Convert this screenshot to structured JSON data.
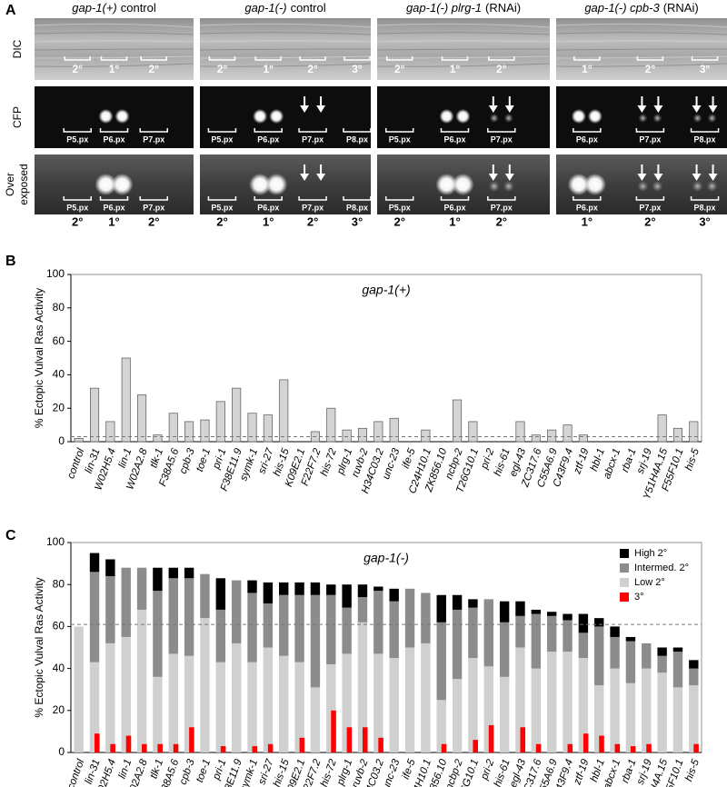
{
  "panel_labels": [
    "A",
    "B",
    "C"
  ],
  "panel_a": {
    "row_labels": {
      "dic": "DIC",
      "cfp": "CFP",
      "over": [
        "Over",
        "exposed"
      ]
    },
    "columns": [
      {
        "genotype": "gap-1(+)",
        "condition": "control",
        "dic": [
          "2°",
          "1°",
          "2°"
        ],
        "cells": [
          "P5.px",
          "P6.px",
          "P7.px"
        ],
        "fates": [
          "2°",
          "1°",
          "2°"
        ]
      },
      {
        "genotype": "gap-1(-)",
        "condition": "control",
        "dic": [
          "2°",
          "1°",
          "2°",
          "3°"
        ],
        "cells": [
          "P5.px",
          "P6.px",
          "P7.px",
          "P8.px"
        ],
        "fates": [
          "2°",
          "1°",
          "2°",
          "3°"
        ]
      },
      {
        "genotype": "gap-1(-) plrg-1",
        "condition": "(RNAi)",
        "dic": [
          "2°",
          "1°",
          "2°"
        ],
        "cells": [
          "P5.px",
          "P6.px",
          "P7.px"
        ],
        "fates": [
          "2°",
          "1°",
          "2°"
        ]
      },
      {
        "genotype": "gap-1(-) cpb-3",
        "condition": "(RNAi)",
        "dic": [
          "1°",
          "2°",
          "3°"
        ],
        "cells": [
          "P6.px",
          "P7.px",
          "P8.px"
        ],
        "fates": [
          "1°",
          "2°",
          "3°"
        ]
      }
    ]
  },
  "chart_data": [
    {
      "type": "bar",
      "title": "gap-1(+)",
      "y_label": "% Ectopic Vulval Ras Activity",
      "categories": [
        "control",
        "lin-31",
        "W02H5.4",
        "lin-1",
        "W02A2.8",
        "tlk-1",
        "F38A5.6",
        "cpb-3",
        "toe-1",
        "pri-1",
        "F38E11.9",
        "symk-1",
        "sri-27",
        "his-15",
        "K09E2.1",
        "F22F7.2",
        "his-72",
        "plrg-1",
        "ruvb-2",
        "H34C03.2",
        "unc-23",
        "ife-5",
        "C24H10.1",
        "ZK856.10",
        "ncbp-2",
        "T26G10.1",
        "pri-2",
        "his-61",
        "egl-43",
        "ZC317.6",
        "C55A6.9",
        "C43F9.4",
        "ztf-19",
        "hbl-1",
        "abcx-1",
        "rba-1",
        "srj-19",
        "Y51H4A.15",
        "F55F10.1",
        "his-5"
      ],
      "values": [
        2,
        32,
        12,
        50,
        28,
        4,
        17,
        12,
        13,
        24,
        32,
        17,
        16,
        37,
        0,
        6,
        20,
        7,
        8,
        12,
        14,
        0,
        7,
        0,
        25,
        12,
        0,
        0,
        12,
        4,
        7,
        10,
        4,
        0,
        0,
        0,
        0,
        16,
        8,
        12
      ],
      "color": "#d4d4d4",
      "ylim": [
        0,
        100
      ],
      "yticks": [
        0,
        20,
        40,
        60,
        80,
        100
      ],
      "reference_line": 3
    },
    {
      "type": "stacked_bar",
      "title": "gap-1(-)",
      "y_label": "% Ectopic Vulval Ras Activity",
      "categories": [
        "control",
        "lin-31",
        "W02H5.4",
        "lin-1",
        "W02A2.8",
        "tlk-1",
        "F38A5.6",
        "cpb-3",
        "toe-1",
        "pri-1",
        "F38E11.9",
        "symk-1",
        "sri-27",
        "his-15",
        "K09E2.1",
        "F22F7.2",
        "his-72",
        "plrg-1",
        "ruvb-2",
        "H34C03.2",
        "unc-23",
        "ife-5",
        "C24H10.1",
        "ZK856.10",
        "ncbp-2",
        "T26G10.1",
        "pri-2",
        "his-61",
        "egl-43",
        "ZC317.6",
        "C55A6.9",
        "C43F9.4",
        "ztf-19",
        "hbl-1",
        "abcx-1",
        "rba-1",
        "srj-19",
        "Y51H4A.15",
        "F55F10.1",
        "his-5"
      ],
      "series": [
        {
          "name": "High 2°",
          "color": "#000000",
          "values": [
            0,
            9,
            8,
            0,
            0,
            11,
            5,
            5,
            0,
            15,
            0,
            6,
            10,
            6,
            6,
            6,
            5,
            11,
            6,
            2,
            6,
            0,
            0,
            13,
            7,
            4,
            0,
            10,
            7,
            2,
            2,
            3,
            9,
            4,
            5,
            2,
            0,
            4,
            2,
            4
          ]
        },
        {
          "name": "Intermed. 2°",
          "color": "#8c8c8c",
          "values": [
            0,
            43,
            32,
            33,
            20,
            41,
            36,
            37,
            21,
            25,
            30,
            33,
            21,
            29,
            32,
            44,
            33,
            22,
            12,
            30,
            27,
            28,
            24,
            37,
            33,
            24,
            32,
            26,
            15,
            26,
            17,
            15,
            12,
            28,
            15,
            20,
            12,
            8,
            17,
            8
          ]
        },
        {
          "name": "Low 2°",
          "color": "#d0d0d0",
          "values": [
            60,
            43,
            52,
            55,
            68,
            36,
            47,
            46,
            64,
            43,
            52,
            43,
            50,
            46,
            43,
            31,
            42,
            47,
            62,
            47,
            45,
            50,
            52,
            25,
            35,
            45,
            41,
            36,
            50,
            40,
            48,
            48,
            45,
            32,
            40,
            33,
            40,
            38,
            31,
            32
          ]
        },
        {
          "name": "3°",
          "color": "#ff0000",
          "overlay": true,
          "values": [
            0,
            9,
            4,
            8,
            4,
            4,
            4,
            12,
            0,
            3,
            0,
            3,
            4,
            0,
            7,
            0,
            20,
            12,
            12,
            7,
            0,
            0,
            0,
            4,
            0,
            6,
            13,
            0,
            12,
            4,
            0,
            4,
            9,
            8,
            4,
            3,
            4,
            0,
            0,
            4
          ]
        }
      ],
      "ylim": [
        0,
        100
      ],
      "yticks": [
        0,
        20,
        40,
        60,
        80,
        100
      ],
      "reference_line": 61,
      "legend": "upper right"
    }
  ]
}
